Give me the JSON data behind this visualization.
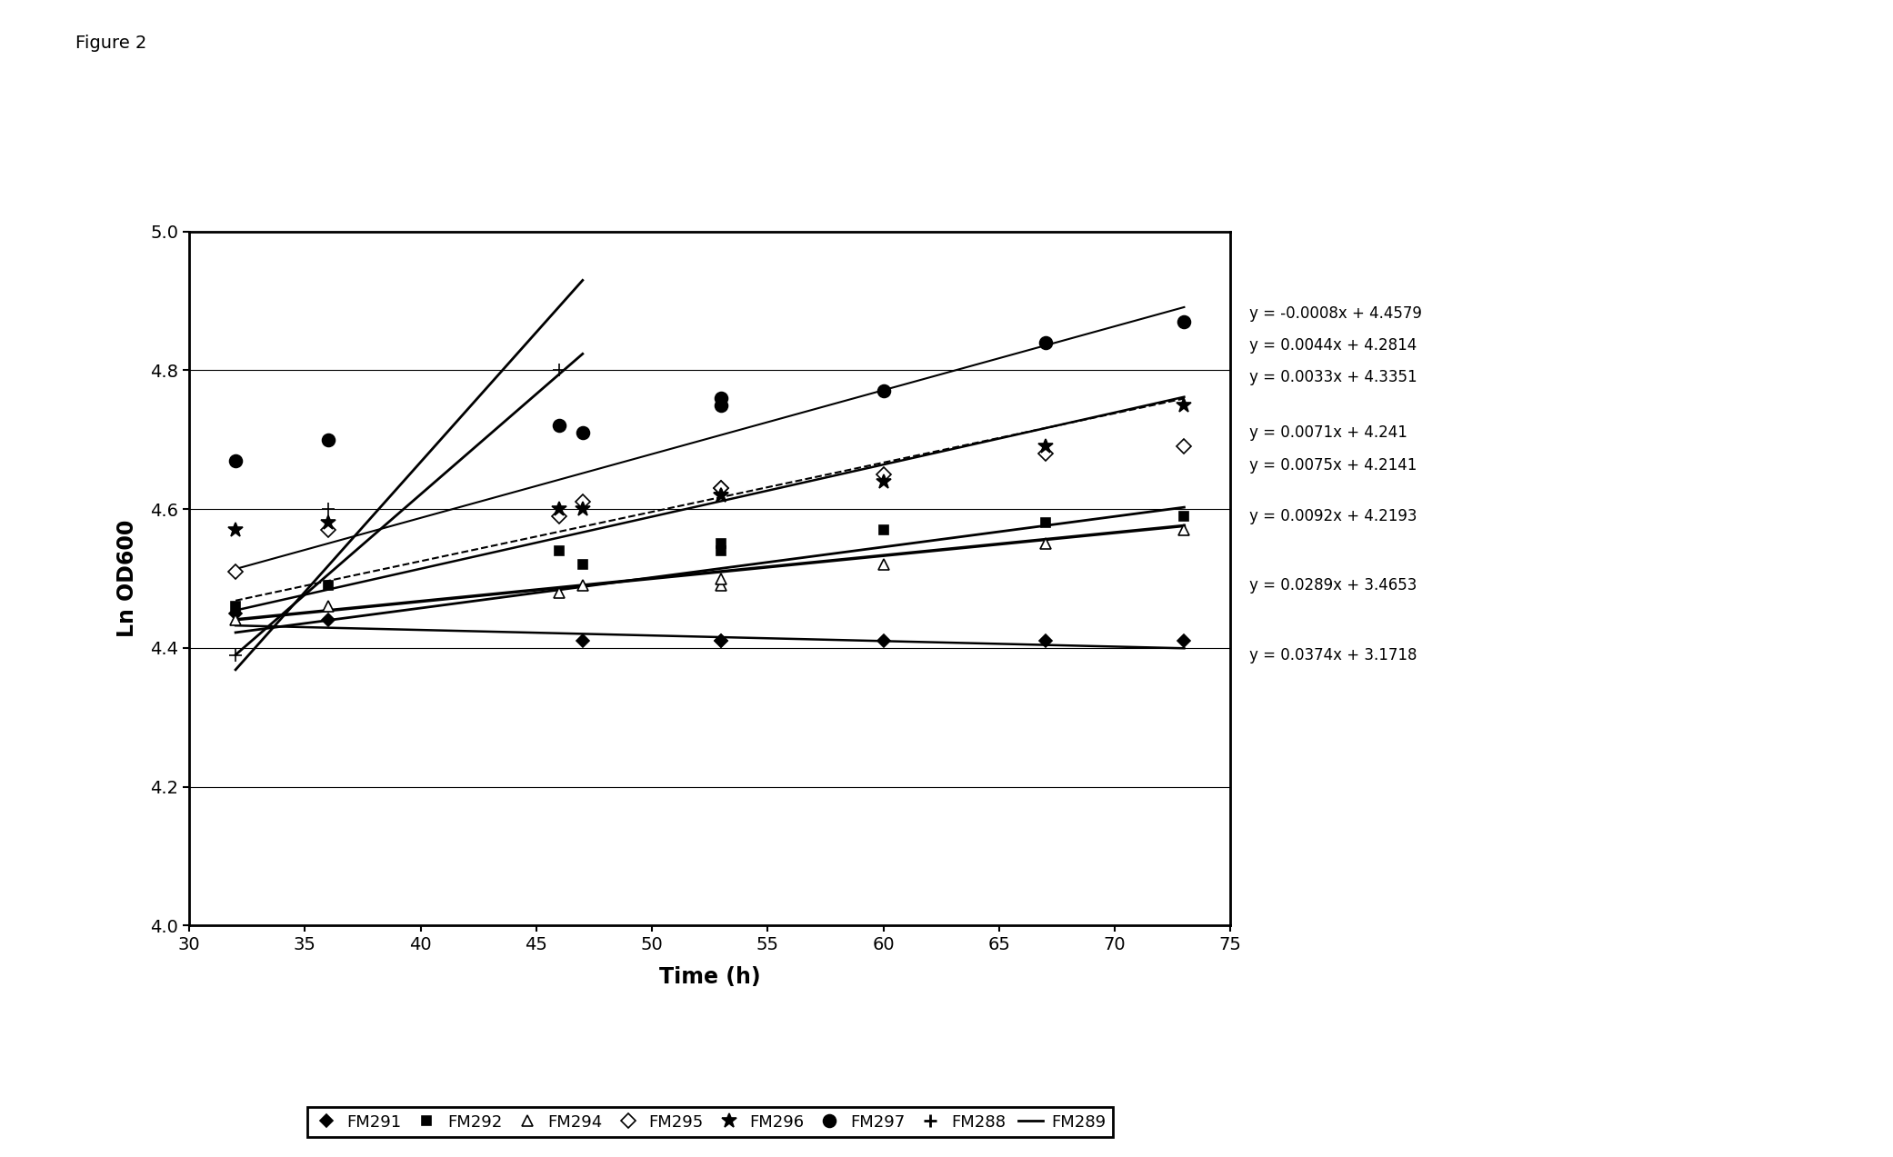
{
  "title": "Figure 2",
  "xlabel": "Time (h)",
  "ylabel": "Ln OD600",
  "xlim": [
    30,
    75
  ],
  "ylim": [
    4.0,
    5.0
  ],
  "xticks": [
    30,
    35,
    40,
    45,
    50,
    55,
    60,
    65,
    70,
    75
  ],
  "yticks": [
    4.0,
    4.2,
    4.4,
    4.6,
    4.8,
    5.0
  ],
  "series": [
    {
      "name": "FM291",
      "label": "FM291",
      "slope": -0.0008,
      "intercept": 4.4579,
      "marker": "D",
      "markersize": 7,
      "color": "black",
      "linestyle": "-",
      "linewidth": 1.8,
      "markerfacecolor": "black",
      "fit_xmin": 32,
      "fit_xmax": 73,
      "x_data": [
        32,
        36,
        47,
        53,
        53,
        60,
        67,
        73
      ],
      "y_data": [
        4.45,
        4.44,
        4.41,
        4.41,
        4.41,
        4.41,
        4.41,
        4.41
      ]
    },
    {
      "name": "FM292",
      "label": "FM292",
      "slope": 0.0075,
      "intercept": 4.2141,
      "marker": "s",
      "markersize": 7,
      "color": "black",
      "linestyle": "-",
      "linewidth": 1.8,
      "markerfacecolor": "black",
      "fit_xmin": 32,
      "fit_xmax": 73,
      "x_data": [
        32,
        36,
        46,
        47,
        53,
        53,
        60,
        67,
        73
      ],
      "y_data": [
        4.46,
        4.49,
        4.54,
        4.52,
        4.54,
        4.55,
        4.57,
        4.58,
        4.59
      ]
    },
    {
      "name": "FM294",
      "label": "FM294",
      "slope": 0.0071,
      "intercept": 4.241,
      "marker": "^",
      "markersize": 8,
      "color": "black",
      "linestyle": "--",
      "linewidth": 1.5,
      "markerfacecolor": "white",
      "fit_xmin": 32,
      "fit_xmax": 73,
      "x_data": [
        32,
        36,
        46,
        47,
        53,
        53,
        60,
        67,
        73
      ],
      "y_data": [
        4.44,
        4.46,
        4.48,
        4.49,
        4.49,
        4.5,
        4.52,
        4.55,
        4.57
      ]
    },
    {
      "name": "FM295",
      "label": "FM295",
      "slope": 0.0092,
      "intercept": 4.2193,
      "marker": "D",
      "markersize": 8,
      "color": "black",
      "linestyle": "-",
      "linewidth": 1.5,
      "markerfacecolor": "white",
      "fit_xmin": 32,
      "fit_xmax": 73,
      "x_data": [
        32,
        36,
        46,
        47,
        53,
        53,
        60,
        67,
        73
      ],
      "y_data": [
        4.51,
        4.57,
        4.59,
        4.61,
        4.63,
        4.63,
        4.65,
        4.68,
        4.69
      ]
    },
    {
      "name": "FM296",
      "label": "FM296",
      "slope": 0.0044,
      "intercept": 4.2814,
      "marker": "*",
      "markersize": 12,
      "color": "black",
      "linestyle": "-",
      "linewidth": 2.0,
      "markerfacecolor": "black",
      "fit_xmin": 32,
      "fit_xmax": 73,
      "x_data": [
        32,
        36,
        46,
        47,
        53,
        53,
        60,
        67,
        73
      ],
      "y_data": [
        4.57,
        4.58,
        4.6,
        4.6,
        4.62,
        4.62,
        4.64,
        4.69,
        4.75
      ]
    },
    {
      "name": "FM297",
      "label": "FM297",
      "slope": 0.0033,
      "intercept": 4.3351,
      "marker": "o",
      "markersize": 10,
      "color": "black",
      "linestyle": "-",
      "linewidth": 2.5,
      "markerfacecolor": "black",
      "fit_xmin": 32,
      "fit_xmax": 73,
      "x_data": [
        32,
        36,
        46,
        47,
        53,
        53,
        60,
        67,
        73
      ],
      "y_data": [
        4.67,
        4.7,
        4.72,
        4.71,
        4.75,
        4.76,
        4.77,
        4.84,
        4.87
      ]
    },
    {
      "name": "FM288",
      "label": "FM288",
      "slope": 0.0289,
      "intercept": 3.4653,
      "marker": "+",
      "markersize": 10,
      "color": "black",
      "linestyle": "-",
      "linewidth": 2.0,
      "markerfacecolor": "black",
      "fit_xmin": 32,
      "fit_xmax": 47,
      "x_data": [
        32,
        36,
        46
      ],
      "y_data": [
        4.39,
        4.6,
        4.8
      ]
    },
    {
      "name": "FM289",
      "label": "FM289",
      "slope": 0.0374,
      "intercept": 3.1718,
      "marker": "none",
      "markersize": 5,
      "color": "black",
      "linestyle": "-",
      "linewidth": 2.0,
      "markerfacecolor": "black",
      "fit_xmin": 32,
      "fit_xmax": 47,
      "x_data": [
        32,
        36,
        46,
        47
      ],
      "y_data": [
        4.37,
        4.52,
        4.9,
        4.92
      ]
    }
  ],
  "eq_annotations": [
    {
      "text": "y = -0.0008x + 4.4579",
      "ypos_data": 4.882
    },
    {
      "text": "y = 0.0044x + 4.2814",
      "ypos_data": 4.836
    },
    {
      "text": "y = 0.0033x + 4.3351",
      "ypos_data": 4.79
    },
    {
      "text": "y = 0.0071x + 4.241",
      "ypos_data": 4.71
    },
    {
      "text": "y = 0.0075x + 4.2141",
      "ypos_data": 4.663
    },
    {
      "text": "y = 0.0092x + 4.2193",
      "ypos_data": 4.59
    },
    {
      "text": "y = 0.0289x + 3.4653",
      "ypos_data": 4.49
    },
    {
      "text": "y = 0.0374x + 3.1718",
      "ypos_data": 4.39
    }
  ],
  "background_color": "white"
}
